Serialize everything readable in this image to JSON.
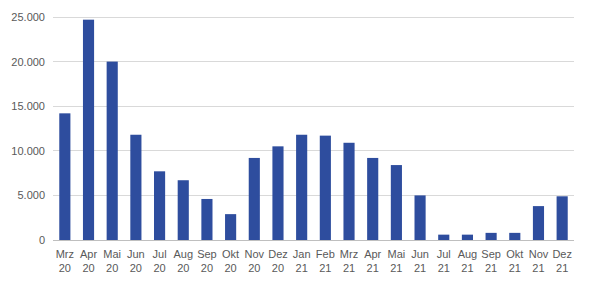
{
  "chart_data": {
    "type": "bar",
    "categories": [
      "Mrz 20",
      "Apr 20",
      "Mai 20",
      "Jun 20",
      "Jul 20",
      "Aug 20",
      "Sep 20",
      "Okt 20",
      "Nov 20",
      "Dez 20",
      "Jan 21",
      "Feb 21",
      "Mrz 21",
      "Apr 21",
      "Mai 21",
      "Jun 21",
      "Jul 21",
      "Aug 21",
      "Sep 21",
      "Okt 21",
      "Nov 21",
      "Dez 21"
    ],
    "values": [
      14200,
      24700,
      20000,
      11800,
      7700,
      6700,
      4600,
      2900,
      9200,
      10500,
      11800,
      11700,
      10900,
      9200,
      8400,
      5000,
      600,
      600,
      800,
      800,
      3800,
      4900
    ],
    "color": "#2e4d9e",
    "ylim": [
      0,
      25000
    ],
    "yticks": [
      0,
      {
        "value": 5000,
        "label": "5.000"
      },
      {
        "value": 10000,
        "label": "10.000"
      },
      {
        "value": 15000,
        "label": "15.000"
      },
      {
        "value": 20000,
        "label": "20.000"
      },
      {
        "value": 25000,
        "label": "25.000"
      }
    ],
    "grid": true
  }
}
